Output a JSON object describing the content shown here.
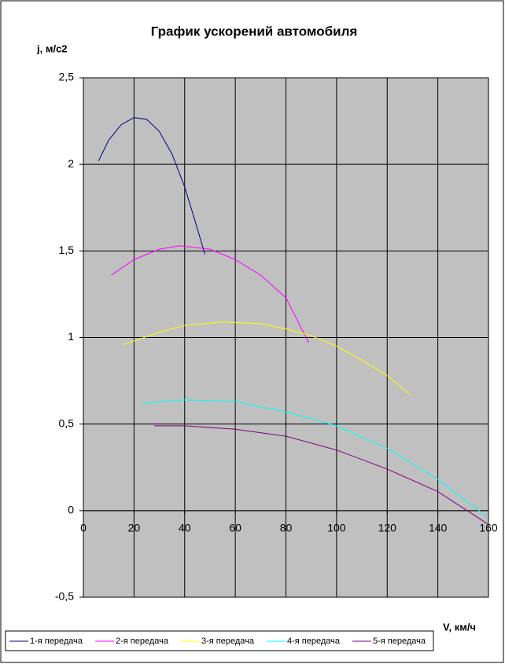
{
  "chart_data": {
    "type": "line",
    "title": "График ускорений автомобиля",
    "y_label": "j, м/с2",
    "x_label": "V, км/ч",
    "xlim": [
      0,
      160
    ],
    "xticks": [
      0,
      20,
      40,
      60,
      80,
      100,
      120,
      140,
      160
    ],
    "ylim": [
      -0.5,
      2.5
    ],
    "yticks": [
      {
        "value": -0.5,
        "label": "-0,5"
      },
      0,
      {
        "value": 0.5,
        "label": "0,5"
      },
      1,
      {
        "value": 1.5,
        "label": "1,5"
      },
      2,
      {
        "value": 2.5,
        "label": "2,5"
      }
    ],
    "grid": true,
    "legend": "bottom",
    "series": [
      {
        "name": "1-я передача",
        "color": "#000080",
        "x": [
          6,
          10,
          15,
          20,
          25,
          30,
          35,
          40,
          45,
          48
        ],
        "values": [
          2.02,
          2.14,
          2.23,
          2.27,
          2.26,
          2.19,
          2.06,
          1.87,
          1.63,
          1.48
        ]
      },
      {
        "name": "2-я передача",
        "color": "#ff00ff",
        "x": [
          11,
          20,
          30,
          38,
          50,
          60,
          70,
          80,
          89
        ],
        "values": [
          1.36,
          1.45,
          1.51,
          1.53,
          1.51,
          1.45,
          1.36,
          1.23,
          0.97
        ]
      },
      {
        "name": "3-я передача",
        "color": "#ffff00",
        "x": [
          16,
          30,
          40,
          55,
          70,
          80,
          90,
          100,
          110,
          120,
          129
        ],
        "values": [
          0.96,
          1.03,
          1.07,
          1.09,
          1.08,
          1.05,
          1.01,
          0.95,
          0.87,
          0.78,
          0.67
        ]
      },
      {
        "name": "4-я передача",
        "color": "#00ffff",
        "x": [
          23,
          40,
          60,
          80,
          100,
          120,
          140,
          159
        ],
        "values": [
          0.62,
          0.64,
          0.63,
          0.57,
          0.49,
          0.36,
          0.18,
          -0.03
        ]
      },
      {
        "name": "5-я передача",
        "color": "#800080",
        "x": [
          28,
          40,
          60,
          80,
          100,
          120,
          140,
          160
        ],
        "values": [
          0.49,
          0.49,
          0.47,
          0.43,
          0.35,
          0.24,
          0.11,
          -0.08
        ]
      }
    ]
  }
}
